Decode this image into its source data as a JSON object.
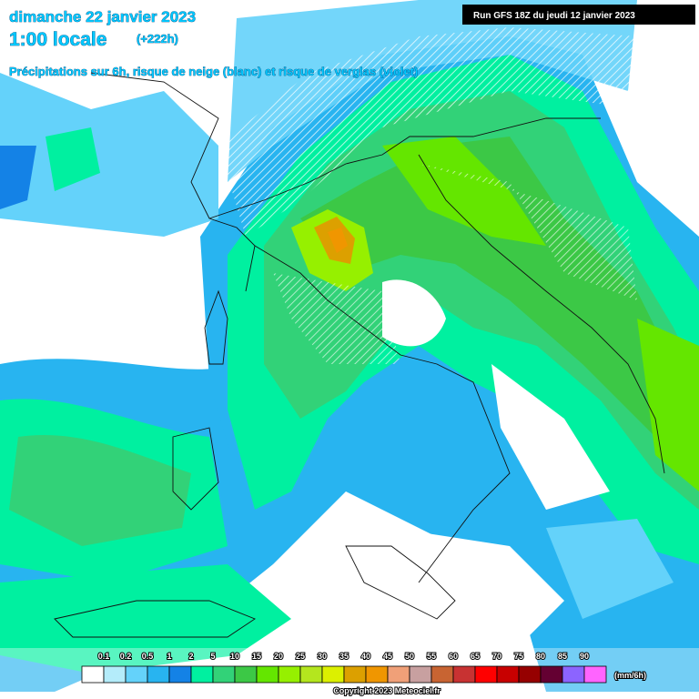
{
  "header": {
    "date": "dimanche 22 janvier 2023",
    "time": "1:00 locale",
    "lead": "(+222h)",
    "subtitle": "Précipitations sur 6h, risque de neige (blanc) et risque de verglas (violet)",
    "run": "Run GFS 18Z du jeudi 12 janvier 2023"
  },
  "legend": {
    "unit": "(mm/6h)",
    "labels": [
      "0.1",
      "0.2",
      "0.5",
      "1",
      "2",
      "5",
      "10",
      "15",
      "20",
      "25",
      "30",
      "35",
      "40",
      "45",
      "50",
      "55",
      "60",
      "65",
      "70",
      "75",
      "80",
      "85",
      "90"
    ],
    "colors": [
      "#ffffff",
      "#b4ecfa",
      "#64d2fa",
      "#28b4f0",
      "#1482e6",
      "#00f0a0",
      "#32d278",
      "#3cc846",
      "#64e600",
      "#96f000",
      "#b4e61e",
      "#dcf000",
      "#dca000",
      "#f09600",
      "#f0a078",
      "#c8a0a0",
      "#c86432",
      "#c83232",
      "#ff0000",
      "#c80000",
      "#960000",
      "#640032",
      "#8c64ff",
      "#ff64ff"
    ]
  },
  "footer": {
    "copyright": "Copyright 2023 Meteociel.fr"
  }
}
